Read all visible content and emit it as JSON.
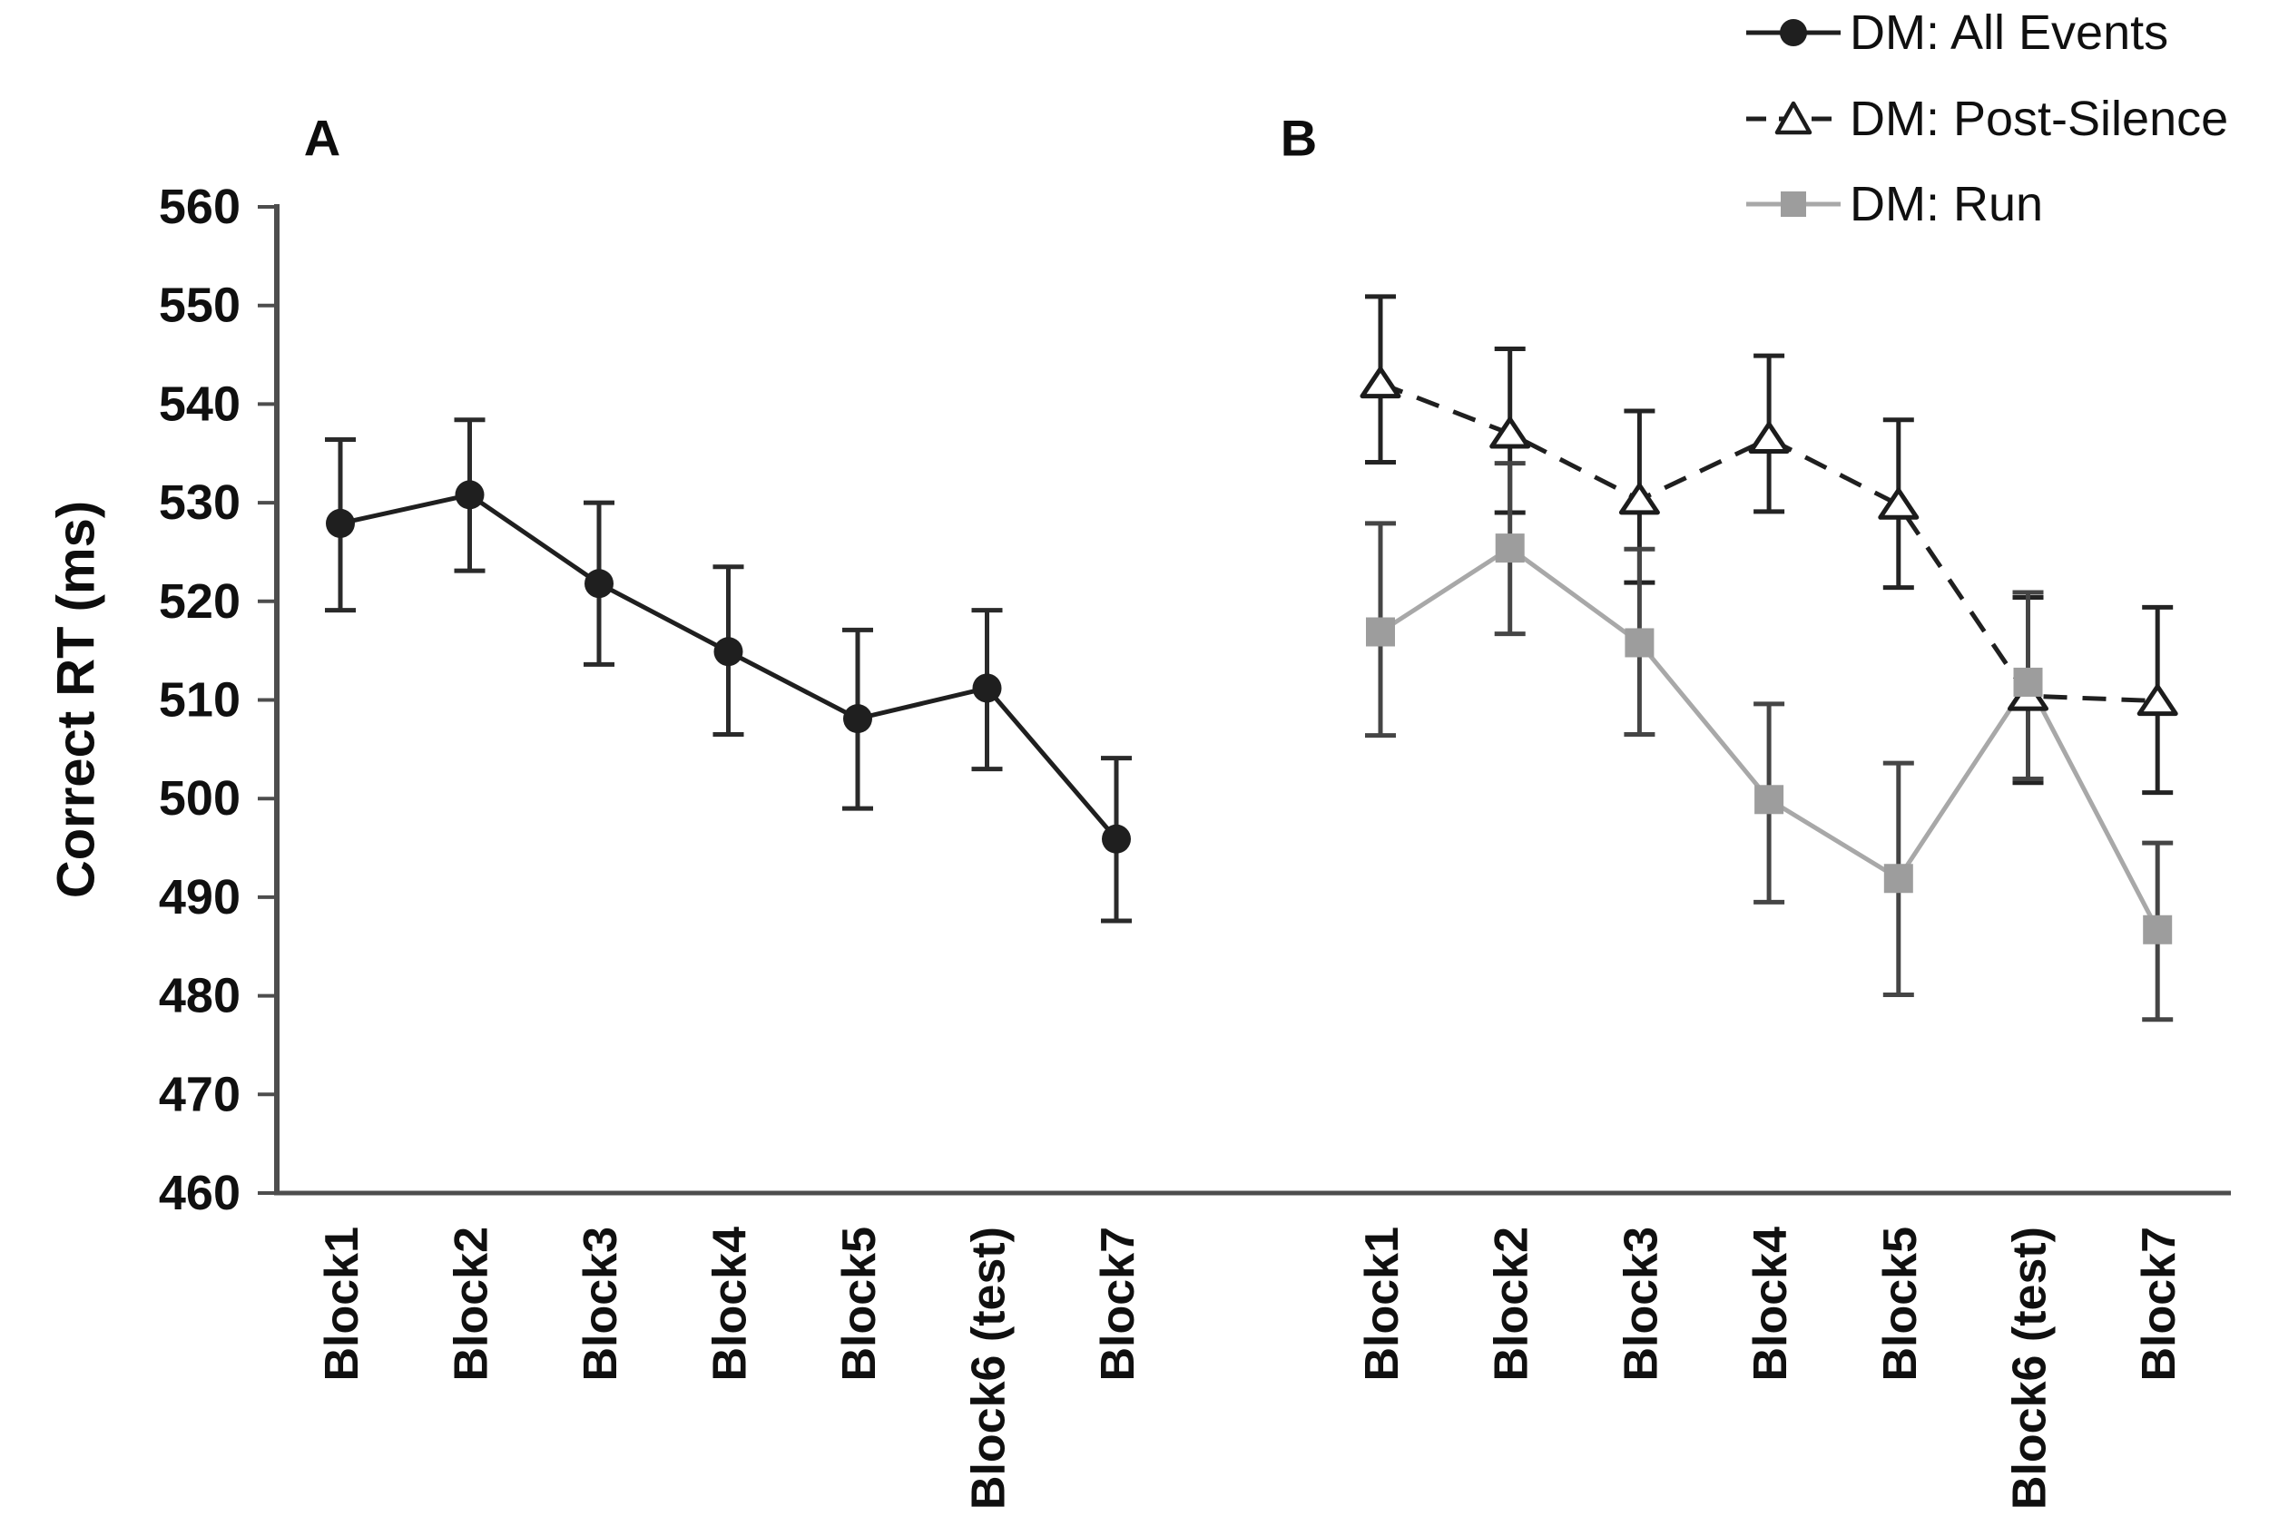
{
  "figure": {
    "panels": [
      {
        "label": "A"
      },
      {
        "label": "B"
      }
    ],
    "y_axis": {
      "title": "Correct RT (ms)",
      "min": 460,
      "max": 560,
      "step": 10,
      "ticks": [
        460,
        470,
        480,
        490,
        500,
        510,
        520,
        530,
        540,
        550,
        560
      ]
    },
    "x_categories": [
      "Block1",
      "Block2",
      "Block3",
      "Block4",
      "Block5",
      "Block6 (test)",
      "Block7"
    ]
  },
  "legend": {
    "items": [
      {
        "label": "DM: All Events",
        "marker": "filled-circle",
        "line": "solid",
        "color": "#1f1f1f",
        "marker_color": "#1f1f1f"
      },
      {
        "label": "DM: Post-Silence",
        "marker": "open-triangle",
        "line": "dashed",
        "color": "#1f1f1f",
        "marker_color": "#ffffff"
      },
      {
        "label": "DM: Run",
        "marker": "filled-square",
        "line": "solid",
        "color": "#a8a8a8",
        "marker_color": "#9d9d9d"
      }
    ]
  },
  "chart_data": [
    {
      "panel": "A",
      "type": "line",
      "categories": [
        "Block1",
        "Block2",
        "Block3",
        "Block4",
        "Block5",
        "Block6 (test)",
        "Block7"
      ],
      "ylabel": "Correct RT (ms)",
      "ylim": [
        460,
        560
      ],
      "grid": false,
      "series": [
        {
          "name": "DM: All Events",
          "marker": "filled-circle",
          "line": "solid",
          "color": "#1f1f1f",
          "error_color": "#2a2a2a",
          "values": [
            527.9,
            530.8,
            521.8,
            514.9,
            508.1,
            511.2,
            495.9
          ],
          "error_upper": [
            536.4,
            538.4,
            530.0,
            523.5,
            517.1,
            519.1,
            504.1
          ],
          "error_lower": [
            519.1,
            523.1,
            513.6,
            506.5,
            499.0,
            503.0,
            487.6
          ]
        }
      ]
    },
    {
      "panel": "B",
      "type": "line",
      "categories": [
        "Block1",
        "Block2",
        "Block3",
        "Block4",
        "Block5",
        "Block6 (test)",
        "Block7"
      ],
      "ylabel": "Correct RT (ms)",
      "ylim": [
        460,
        560
      ],
      "grid": false,
      "series": [
        {
          "name": "DM: Post-Silence",
          "marker": "open-triangle",
          "line": "dashed",
          "color": "#1f1f1f",
          "error_color": "#232323",
          "values": [
            542.1,
            537.0,
            530.3,
            536.5,
            529.8,
            510.4,
            509.9
          ],
          "error_upper": [
            550.9,
            545.6,
            539.3,
            544.9,
            538.4,
            520.4,
            519.4
          ],
          "error_lower": [
            534.1,
            529.0,
            521.9,
            529.1,
            521.4,
            501.6,
            500.6
          ]
        },
        {
          "name": "DM: Run",
          "marker": "filled-square",
          "line": "solid",
          "color": "#a8a8a8",
          "error_color": "#454545",
          "values": [
            516.9,
            525.4,
            515.8,
            499.9,
            491.9,
            511.8,
            486.7
          ],
          "error_upper": [
            527.9,
            534.0,
            525.3,
            509.6,
            503.6,
            520.9,
            495.5
          ],
          "error_lower": [
            506.4,
            516.7,
            506.5,
            489.5,
            480.1,
            502.0,
            477.6
          ]
        }
      ]
    }
  ]
}
